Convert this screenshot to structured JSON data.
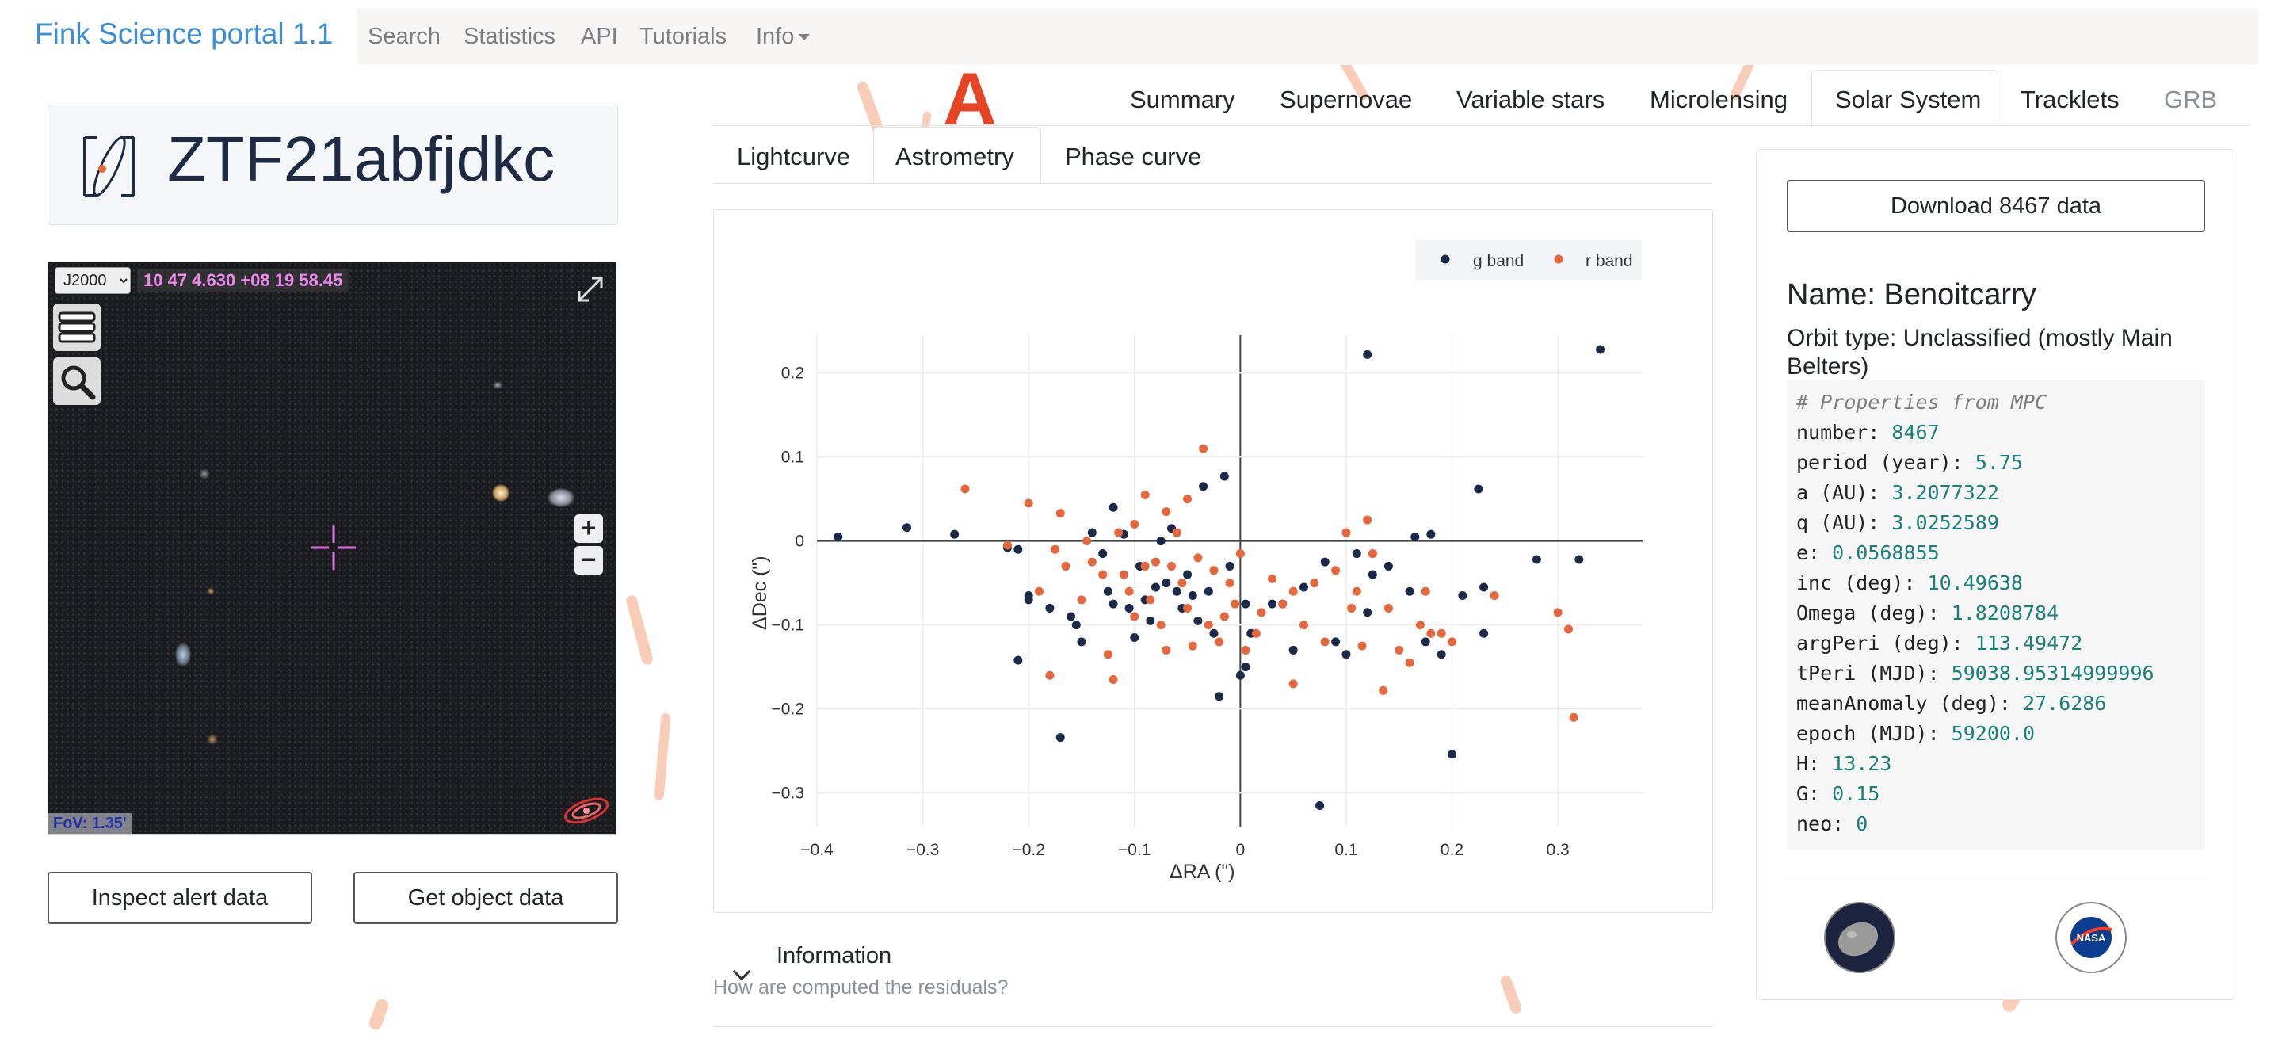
{
  "navbar": {
    "brand": "Fink Science portal 1.1",
    "links": [
      "Search",
      "Statistics",
      "API",
      "Tutorials",
      "Info"
    ]
  },
  "object": {
    "name": "ZTF21abfjdkc"
  },
  "sky_viewer": {
    "frame": "J2000",
    "coordinates": "10 47 4.630 +08 19 58.45",
    "fov": "FoV: 1.35'",
    "zoom_in": "+",
    "zoom_out": "−"
  },
  "buttons": {
    "inspect": "Inspect alert data",
    "get_object": "Get object data"
  },
  "top_tabs": {
    "marker": "A",
    "items": [
      "Summary",
      "Supernovae",
      "Variable stars",
      "Microlensing",
      "Solar System",
      "Tracklets",
      "GRB"
    ],
    "active": "Solar System"
  },
  "sub_tabs": {
    "items": [
      "Lightcurve",
      "Astrometry",
      "Phase curve"
    ],
    "active": "Astrometry"
  },
  "chart_data": {
    "type": "scatter",
    "xlabel": "ΔRA (\")",
    "ylabel": "ΔDec (\")",
    "xlim": [
      -0.4,
      0.38
    ],
    "ylim": [
      -0.34,
      0.245
    ],
    "xticks": [
      -0.4,
      -0.3,
      -0.2,
      -0.1,
      0,
      0.1,
      0.2,
      0.3
    ],
    "xtick_labels": [
      "−0.4",
      "−0.3",
      "−0.2",
      "−0.1",
      "0",
      "0.1",
      "0.2",
      "0.3"
    ],
    "yticks": [
      -0.3,
      -0.2,
      -0.1,
      0,
      0.1,
      0.2
    ],
    "ytick_labels": [
      "−0.3",
      "−0.2",
      "−0.1",
      "0",
      "0.1",
      "0.2"
    ],
    "grid": true,
    "legend_position": "top-right",
    "series": [
      {
        "name": "g band",
        "color": "#1b2a4a",
        "points": [
          [
            -0.38,
            0.005
          ],
          [
            -0.315,
            0.016
          ],
          [
            -0.27,
            0.008
          ],
          [
            -0.22,
            -0.008
          ],
          [
            -0.21,
            -0.01
          ],
          [
            -0.2,
            -0.065
          ],
          [
            -0.2,
            -0.07
          ],
          [
            -0.21,
            -0.142
          ],
          [
            -0.18,
            -0.08
          ],
          [
            -0.17,
            -0.234
          ],
          [
            -0.16,
            -0.09
          ],
          [
            -0.155,
            -0.1
          ],
          [
            -0.15,
            -0.12
          ],
          [
            -0.14,
            0.01
          ],
          [
            -0.13,
            -0.015
          ],
          [
            -0.125,
            -0.06
          ],
          [
            -0.12,
            -0.075
          ],
          [
            -0.12,
            0.04
          ],
          [
            -0.11,
            0.008
          ],
          [
            -0.105,
            -0.08
          ],
          [
            -0.1,
            -0.115
          ],
          [
            -0.095,
            -0.03
          ],
          [
            -0.09,
            -0.07
          ],
          [
            -0.085,
            -0.095
          ],
          [
            -0.08,
            -0.055
          ],
          [
            -0.075,
            0.0
          ],
          [
            -0.07,
            -0.05
          ],
          [
            -0.065,
            0.015
          ],
          [
            -0.06,
            -0.06
          ],
          [
            -0.055,
            -0.08
          ],
          [
            -0.05,
            -0.04
          ],
          [
            -0.045,
            -0.065
          ],
          [
            -0.04,
            -0.095
          ],
          [
            -0.035,
            0.065
          ],
          [
            -0.03,
            -0.06
          ],
          [
            -0.025,
            -0.11
          ],
          [
            -0.02,
            -0.185
          ],
          [
            -0.015,
            0.077
          ],
          [
            -0.01,
            -0.03
          ],
          [
            0.0,
            -0.16
          ],
          [
            0.005,
            -0.075
          ],
          [
            0.005,
            -0.15
          ],
          [
            0.01,
            -0.11
          ],
          [
            0.03,
            -0.075
          ],
          [
            0.04,
            -0.075
          ],
          [
            0.05,
            -0.13
          ],
          [
            0.06,
            -0.055
          ],
          [
            0.075,
            -0.315
          ],
          [
            0.08,
            -0.025
          ],
          [
            0.09,
            -0.12
          ],
          [
            0.1,
            -0.135
          ],
          [
            0.11,
            -0.015
          ],
          [
            0.12,
            0.222
          ],
          [
            0.12,
            -0.085
          ],
          [
            0.125,
            -0.04
          ],
          [
            0.14,
            -0.03
          ],
          [
            0.16,
            -0.06
          ],
          [
            0.165,
            0.005
          ],
          [
            0.175,
            -0.12
          ],
          [
            0.18,
            0.008
          ],
          [
            0.19,
            -0.135
          ],
          [
            0.2,
            -0.254
          ],
          [
            0.21,
            -0.065
          ],
          [
            0.225,
            0.062
          ],
          [
            0.23,
            -0.11
          ],
          [
            0.23,
            -0.055
          ],
          [
            0.28,
            -0.022
          ],
          [
            0.32,
            -0.022
          ],
          [
            0.34,
            0.228
          ]
        ]
      },
      {
        "name": "r band",
        "color": "#e5673b",
        "points": [
          [
            -0.26,
            0.062
          ],
          [
            -0.22,
            -0.005
          ],
          [
            -0.2,
            0.045
          ],
          [
            -0.19,
            -0.06
          ],
          [
            -0.18,
            -0.16
          ],
          [
            -0.175,
            -0.01
          ],
          [
            -0.17,
            0.033
          ],
          [
            -0.165,
            -0.03
          ],
          [
            -0.15,
            -0.07
          ],
          [
            -0.145,
            0.0
          ],
          [
            -0.14,
            -0.025
          ],
          [
            -0.13,
            -0.04
          ],
          [
            -0.125,
            -0.135
          ],
          [
            -0.12,
            -0.165
          ],
          [
            -0.115,
            0.01
          ],
          [
            -0.11,
            -0.04
          ],
          [
            -0.105,
            -0.06
          ],
          [
            -0.1,
            -0.09
          ],
          [
            -0.1,
            0.02
          ],
          [
            -0.09,
            -0.03
          ],
          [
            -0.09,
            0.055
          ],
          [
            -0.085,
            -0.07
          ],
          [
            -0.08,
            -0.025
          ],
          [
            -0.075,
            -0.1
          ],
          [
            -0.07,
            -0.13
          ],
          [
            -0.07,
            0.035
          ],
          [
            -0.065,
            -0.03
          ],
          [
            -0.06,
            0.01
          ],
          [
            -0.055,
            -0.05
          ],
          [
            -0.05,
            -0.08
          ],
          [
            -0.05,
            0.05
          ],
          [
            -0.045,
            -0.125
          ],
          [
            -0.04,
            -0.02
          ],
          [
            -0.035,
            0.11
          ],
          [
            -0.03,
            -0.1
          ],
          [
            -0.025,
            -0.035
          ],
          [
            -0.02,
            -0.12
          ],
          [
            -0.015,
            -0.09
          ],
          [
            -0.01,
            -0.05
          ],
          [
            -0.005,
            -0.075
          ],
          [
            0.0,
            -0.015
          ],
          [
            0.005,
            -0.13
          ],
          [
            0.015,
            -0.11
          ],
          [
            0.02,
            -0.085
          ],
          [
            0.03,
            -0.045
          ],
          [
            0.04,
            -0.075
          ],
          [
            0.05,
            -0.06
          ],
          [
            0.05,
            -0.17
          ],
          [
            0.06,
            -0.1
          ],
          [
            0.07,
            -0.05
          ],
          [
            0.08,
            -0.12
          ],
          [
            0.09,
            -0.035
          ],
          [
            0.1,
            0.01
          ],
          [
            0.105,
            -0.08
          ],
          [
            0.11,
            -0.06
          ],
          [
            0.115,
            -0.125
          ],
          [
            0.12,
            0.025
          ],
          [
            0.125,
            -0.015
          ],
          [
            0.135,
            -0.178
          ],
          [
            0.14,
            -0.08
          ],
          [
            0.15,
            -0.13
          ],
          [
            0.16,
            -0.145
          ],
          [
            0.17,
            -0.1
          ],
          [
            0.175,
            -0.06
          ],
          [
            0.18,
            -0.11
          ],
          [
            0.19,
            -0.11
          ],
          [
            0.2,
            -0.12
          ],
          [
            0.24,
            -0.065
          ],
          [
            0.3,
            -0.085
          ],
          [
            0.31,
            -0.105
          ],
          [
            0.315,
            -0.21
          ]
        ]
      }
    ]
  },
  "information": {
    "title": "Information",
    "subtitle": "How are computed the residuals?"
  },
  "right_panel": {
    "download_label": "Download 8467 data",
    "name_line": "Name: Benoitcarry",
    "orbit_line": "Orbit type: Unclassified (mostly Main Belters)",
    "props_comment": "# Properties from MPC",
    "properties": [
      {
        "key": "number: ",
        "value": "8467"
      },
      {
        "key": "period (year): ",
        "value": "5.75"
      },
      {
        "key": "a (AU): ",
        "value": "3.2077322"
      },
      {
        "key": "q (AU): ",
        "value": "3.0252589"
      },
      {
        "key": "e: ",
        "value": "0.0568855"
      },
      {
        "key": "inc (deg): ",
        "value": "10.49638"
      },
      {
        "key": "Omega (deg): ",
        "value": "1.8208784"
      },
      {
        "key": "argPeri (deg): ",
        "value": "113.49472"
      },
      {
        "key": "tPeri (MJD): ",
        "value": "59038.95314999996"
      },
      {
        "key": "meanAnomaly (deg): ",
        "value": "27.6286"
      },
      {
        "key": "epoch (MJD): ",
        "value": "59200.0"
      },
      {
        "key": "H: ",
        "value": "13.23"
      },
      {
        "key": "G: ",
        "value": "0.15"
      },
      {
        "key": "neo: ",
        "value": "0"
      }
    ],
    "logo_nasa": "NASA"
  }
}
